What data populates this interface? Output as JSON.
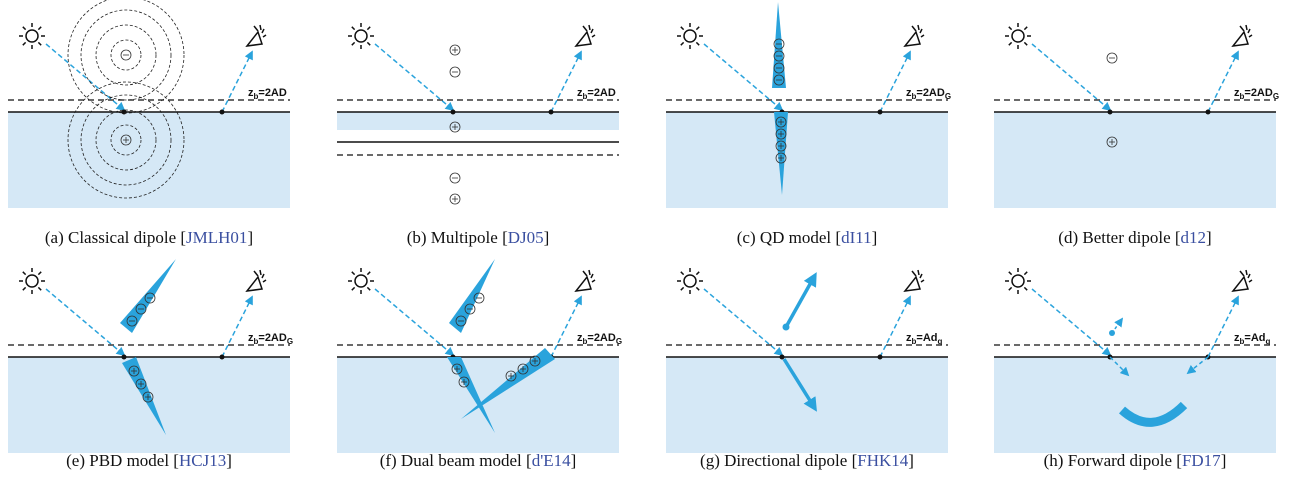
{
  "panels": [
    {
      "plane_label": [
        "z",
        "b",
        "=2AD"
      ],
      "caption": "(a) Classical dipole [",
      "citation": "JMLH01",
      "close": "]"
    },
    {
      "plane_label": [
        "z",
        "b",
        "=2AD"
      ],
      "caption": "(b) Multipole [",
      "citation": "DJ05",
      "close": "]"
    },
    {
      "plane_label": [
        "z",
        "b",
        "=2AD",
        "G"
      ],
      "caption": "(c) QD model [",
      "citation": "dI11",
      "close": "]"
    },
    {
      "plane_label": [
        "z",
        "b",
        "=2AD",
        "G"
      ],
      "caption": "(d) Better dipole [",
      "citation": "d12",
      "close": "]"
    },
    {
      "plane_label": [
        "z",
        "b",
        "=2AD",
        "G"
      ],
      "caption": "(e) PBD model [",
      "citation": "HCJ13",
      "close": "]"
    },
    {
      "plane_label": [
        "z",
        "b",
        "=2AD",
        "G"
      ],
      "caption": "(f) Dual beam model [",
      "citation": "d'E14",
      "close": "]"
    },
    {
      "plane_label": [
        "z",
        "b",
        "=Ad",
        "g"
      ],
      "caption": "(g) Directional dipole [",
      "citation": "FHK14",
      "close": "]"
    },
    {
      "plane_label": [
        "z",
        "b",
        "=Ad",
        "g"
      ],
      "caption": "(h) Forward dipole [",
      "citation": "FD17",
      "close": "]"
    }
  ]
}
